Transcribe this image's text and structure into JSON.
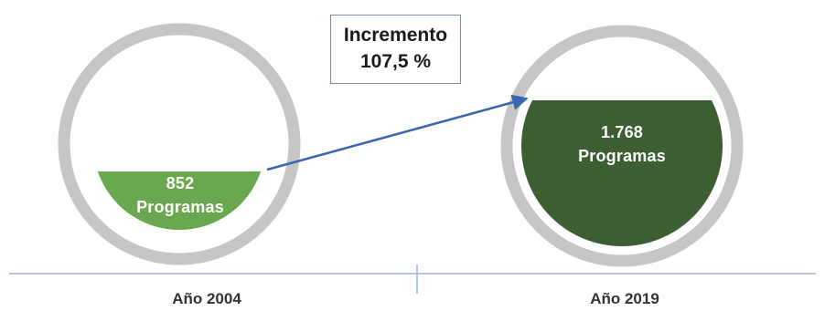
{
  "increment": {
    "title": "Incremento",
    "value": "107,5 %"
  },
  "circles": [
    {
      "value": "852",
      "unit": "Programas",
      "year": "Año 2004",
      "fill_color": "#6aa84f",
      "fill_level": 0.37
    },
    {
      "value": "1.768",
      "unit": "Programas",
      "year": "Año 2019",
      "fill_color": "#3c5e32",
      "fill_level": 0.77
    }
  ],
  "colors": {
    "ring": "#c6c6c6",
    "arrow": "#3a67b0",
    "axis": "#9bb5d8"
  }
}
